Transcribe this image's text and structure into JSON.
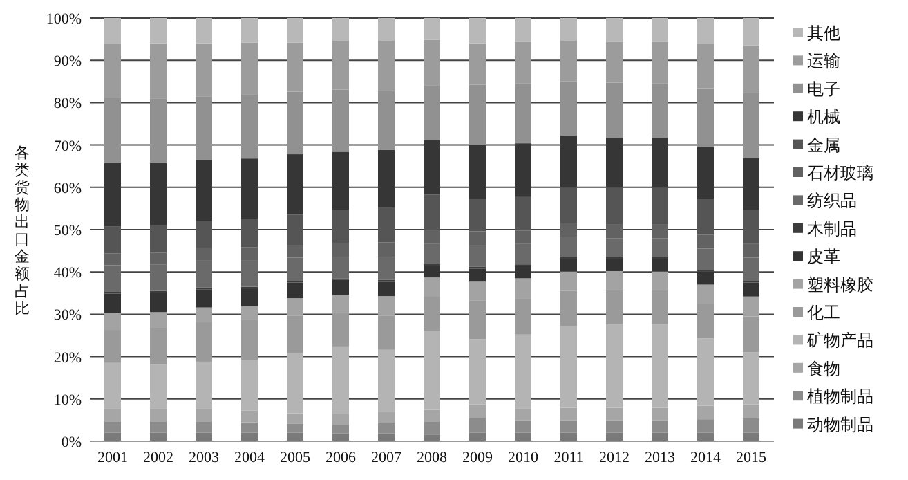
{
  "chart_data": {
    "type": "bar",
    "stacked": true,
    "ylabel": "各类货物出口金额占比",
    "categories": [
      "2001",
      "2002",
      "2003",
      "2004",
      "2005",
      "2006",
      "2007",
      "2008",
      "2009",
      "2010",
      "2011",
      "2012",
      "2013",
      "2014",
      "2015"
    ],
    "ylim": [
      0,
      100
    ],
    "yticks": [
      {
        "value": 0,
        "label": "0%"
      },
      {
        "value": 10,
        "label": "10%"
      },
      {
        "value": 20,
        "label": "20%"
      },
      {
        "value": 30,
        "label": "30%"
      },
      {
        "value": 40,
        "label": "40%"
      },
      {
        "value": 50,
        "label": "50%"
      },
      {
        "value": 60,
        "label": "60%"
      },
      {
        "value": 70,
        "label": "70%"
      },
      {
        "value": 80,
        "label": "80%"
      },
      {
        "value": 90,
        "label": "90%"
      },
      {
        "value": 100,
        "label": "100%"
      }
    ],
    "grid": "y",
    "legend": "right",
    "series": [
      {
        "name": "动物制品",
        "color": "#7a7a7a",
        "values": [
          2.0,
          2.0,
          2.0,
          2.0,
          2.0,
          1.9,
          1.9,
          1.6,
          2.0,
          2.0,
          2.0,
          2.0,
          2.0,
          2.0,
          2.0
        ]
      },
      {
        "name": "植物制品",
        "color": "#8c8c8c",
        "values": [
          2.7,
          2.7,
          2.7,
          2.5,
          2.1,
          2.0,
          2.4,
          3.1,
          3.4,
          3.0,
          3.0,
          3.0,
          3.0,
          3.2,
          3.4
        ]
      },
      {
        "name": "食物",
        "color": "#a6a6a6",
        "values": [
          2.9,
          2.9,
          2.9,
          2.8,
          2.5,
          2.6,
          2.7,
          2.7,
          3.3,
          2.8,
          2.9,
          2.9,
          2.9,
          3.2,
          3.3
        ]
      },
      {
        "name": "矿物产品",
        "color": "#b4b4b4",
        "values": [
          10.9,
          10.5,
          11.2,
          11.9,
          14.2,
          15.9,
          14.6,
          18.7,
          15.4,
          17.4,
          19.3,
          19.7,
          19.7,
          15.9,
          12.3
        ]
      },
      {
        "name": "化工",
        "color": "#9a9a9a",
        "values": [
          7.8,
          8.7,
          9.3,
          9.4,
          8.9,
          7.9,
          8.1,
          8.2,
          9.2,
          8.6,
          8.3,
          8.1,
          8.1,
          8.2,
          8.5
        ]
      },
      {
        "name": "塑料橡胶",
        "color": "#a3a3a3",
        "values": [
          4.0,
          3.7,
          3.5,
          3.3,
          4.1,
          4.3,
          4.6,
          4.4,
          4.4,
          4.7,
          4.6,
          4.5,
          4.4,
          4.5,
          4.7
        ]
      },
      {
        "name": "皮革",
        "color": "#333333",
        "values": [
          4.6,
          4.6,
          4.3,
          4.2,
          3.7,
          3.5,
          3.4,
          2.8,
          3.1,
          2.9,
          3.0,
          2.9,
          3.0,
          3.1,
          3.3
        ]
      },
      {
        "name": "木制品",
        "color": "#3c3c3c",
        "values": [
          0.4,
          0.4,
          0.4,
          0.4,
          0.4,
          0.4,
          0.4,
          0.4,
          0.4,
          0.4,
          0.4,
          0.4,
          0.4,
          0.4,
          0.4
        ]
      },
      {
        "name": "纺织品",
        "color": "#6a6a6a",
        "values": [
          6.3,
          6.2,
          6.5,
          6.3,
          5.5,
          5.1,
          5.5,
          4.7,
          5.2,
          4.8,
          4.8,
          4.5,
          4.5,
          5.0,
          5.5
        ]
      },
      {
        "name": "石材玻璃",
        "color": "#626262",
        "values": [
          2.8,
          2.8,
          2.8,
          3.0,
          3.0,
          3.2,
          3.4,
          3.3,
          3.2,
          3.2,
          3.2,
          3.3,
          3.3,
          3.3,
          3.2
        ]
      },
      {
        "name": "金属",
        "color": "#555555",
        "values": [
          6.3,
          6.5,
          6.5,
          6.7,
          7.1,
          7.9,
          8.1,
          8.4,
          7.6,
          7.9,
          8.4,
          8.6,
          8.6,
          8.5,
          8.0
        ]
      },
      {
        "name": "机械",
        "color": "#363636",
        "values": [
          15.0,
          14.7,
          14.3,
          14.3,
          14.3,
          13.7,
          13.7,
          12.8,
          12.8,
          12.7,
          12.3,
          11.8,
          11.8,
          12.2,
          12.3
        ]
      },
      {
        "name": "电子",
        "color": "#919191",
        "values": [
          15.5,
          15.2,
          15.1,
          15.2,
          14.8,
          14.7,
          14.0,
          12.9,
          14.2,
          14.1,
          12.8,
          13.0,
          12.8,
          13.9,
          15.3
        ]
      },
      {
        "name": "运输",
        "color": "#9c9c9c",
        "values": [
          12.6,
          13.1,
          12.5,
          12.2,
          11.6,
          11.5,
          11.8,
          10.8,
          9.8,
          9.8,
          9.6,
          9.6,
          9.8,
          10.4,
          11.3
        ]
      },
      {
        "name": "其他",
        "color": "#b8b8b8",
        "values": [
          6.2,
          6.0,
          6.0,
          5.8,
          5.8,
          5.4,
          5.4,
          5.2,
          6.0,
          5.7,
          5.4,
          5.7,
          5.7,
          6.2,
          6.5
        ]
      }
    ]
  }
}
